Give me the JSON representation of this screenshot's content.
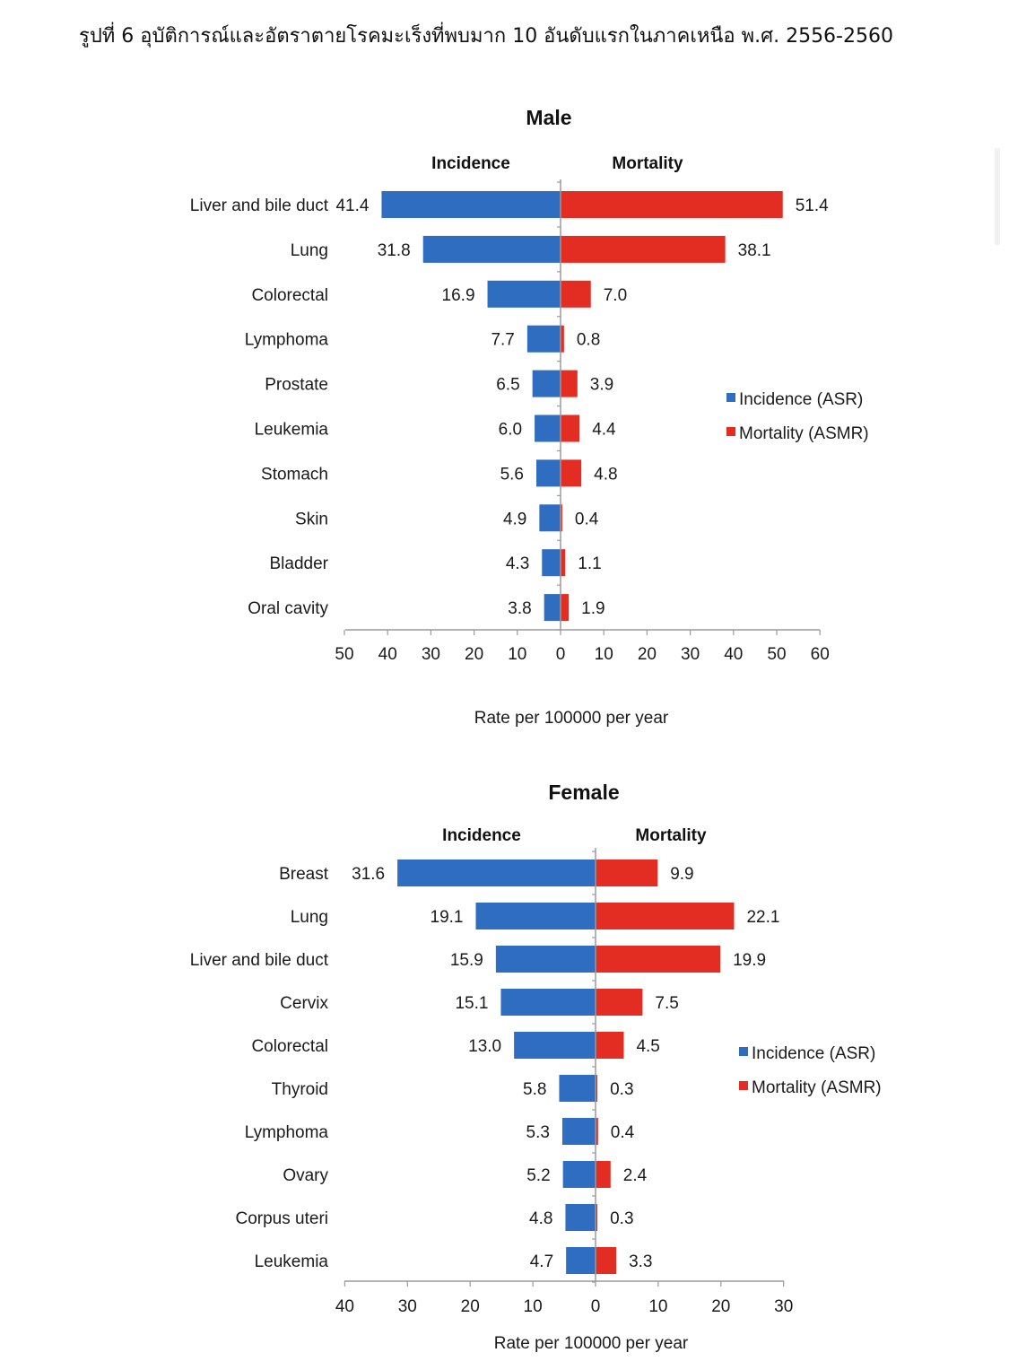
{
  "page_title": "รูปที่ 6 อุบัติการณ์และอัตราตายโรคมะเร็งที่พบมาก 10 อันดับแรกในภาคเหนือ พ.ศ. 2556-2560",
  "colors": {
    "incidence": "#2E6DBF",
    "mortality": "#E32D22",
    "axis": "#9a9a9a",
    "text": "#1a1a1a"
  },
  "chart_data": [
    {
      "type": "bar",
      "orientation": "horizontal-butterfly",
      "title": "Male",
      "left_header": "Incidence",
      "right_header": "Mortality",
      "xlabel": "Rate per 100000 per year",
      "xlim": [
        -50,
        60
      ],
      "ticks": [
        "50",
        "40",
        "30",
        "20",
        "10",
        "0",
        "10",
        "20",
        "30",
        "40",
        "50",
        "60"
      ],
      "legend": [
        "Incidence (ASR)",
        "Mortality (ASMR)"
      ],
      "legend_position": "right",
      "categories": [
        "Liver and bile duct",
        "Lung",
        "Colorectal",
        "Lymphoma",
        "Prostate",
        "Leukemia",
        "Stomach",
        "Skin",
        "Bladder",
        "Oral cavity"
      ],
      "series": [
        {
          "name": "Incidence (ASR)",
          "values": [
            41.4,
            31.8,
            16.9,
            7.7,
            6.5,
            6.0,
            5.6,
            4.9,
            4.3,
            3.8
          ],
          "labels": [
            "41.4",
            "31.8",
            "16.9",
            "7.7",
            "6.5",
            "6.0",
            "5.6",
            "4.9",
            "4.3",
            "3.8"
          ]
        },
        {
          "name": "Mortality (ASMR)",
          "values": [
            51.4,
            38.1,
            7.0,
            0.8,
            3.9,
            4.4,
            4.8,
            0.4,
            1.1,
            1.9
          ],
          "labels": [
            "51.4",
            "38.1",
            "7.0",
            "0.8",
            "3.9",
            "4.4",
            "4.8",
            "0.4",
            "1.1",
            "1.9"
          ]
        }
      ]
    },
    {
      "type": "bar",
      "orientation": "horizontal-butterfly",
      "title": "Female",
      "left_header": "Incidence",
      "right_header": "Mortality",
      "xlabel": "Rate per 100000 per year",
      "xlim": [
        -40,
        30
      ],
      "ticks": [
        "40",
        "30",
        "20",
        "10",
        "0",
        "10",
        "20",
        "30"
      ],
      "legend": [
        "Incidence (ASR)",
        "Mortality (ASMR)"
      ],
      "legend_position": "right",
      "categories": [
        "Breast",
        "Lung",
        "Liver and bile duct",
        "Cervix",
        "Colorectal",
        "Thyroid",
        "Lymphoma",
        "Ovary",
        "Corpus uteri",
        "Leukemia"
      ],
      "series": [
        {
          "name": "Incidence (ASR)",
          "values": [
            31.6,
            19.1,
            15.9,
            15.1,
            13.0,
            5.8,
            5.3,
            5.2,
            4.8,
            4.7
          ],
          "labels": [
            "31.6",
            "19.1",
            "15.9",
            "15.1",
            "13.0",
            "5.8",
            "5.3",
            "5.2",
            "4.8",
            "4.7"
          ]
        },
        {
          "name": "Mortality (ASMR)",
          "values": [
            9.9,
            22.1,
            19.9,
            7.5,
            4.5,
            0.3,
            0.4,
            2.4,
            0.3,
            3.3
          ],
          "labels": [
            "9.9",
            "22.1",
            "19.9",
            "7.5",
            "4.5",
            "0.3",
            "0.4",
            "2.4",
            "0.3",
            "3.3"
          ]
        }
      ]
    }
  ]
}
